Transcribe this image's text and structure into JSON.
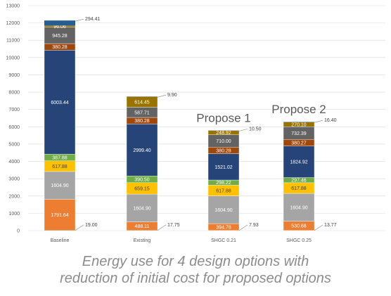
{
  "chart_data": {
    "type": "stacked-bar",
    "ylim": [
      0,
      13000
    ],
    "yticks": [
      "0",
      "1000",
      "2000",
      "3000",
      "4000",
      "5000",
      "6000",
      "7000",
      "8000",
      "9000",
      "10000",
      "11000",
      "12000",
      "13000"
    ],
    "grid": true,
    "categories": [
      "Baseline",
      "Existing",
      "SHGC 0.21",
      "SHGC 0.25"
    ],
    "series": [
      {
        "color": "#ed7d31",
        "values": [
          1791.64,
          488.11,
          394.78,
          530.68
        ],
        "labels": [
          "1791.64",
          "488.11",
          "394.78",
          "530.68"
        ]
      },
      {
        "color": "#a5a5a5",
        "values": [
          1604.9,
          1604.9,
          1604.9,
          1604.9
        ],
        "labels": [
          "1604.90",
          "1604.90",
          "1604.90",
          "1604.90"
        ]
      },
      {
        "color": "#ffc000",
        "values": [
          617.88,
          659.15,
          617.88,
          617.88
        ],
        "labels": [
          "617.88",
          "659.15",
          "617.88",
          "617.88"
        ]
      },
      {
        "color": "#70ad47",
        "values": [
          387.88,
          390.5,
          298.22,
          297.46
        ],
        "labels": [
          "387.88",
          "390.50",
          "298.22",
          "297.46"
        ]
      },
      {
        "color": "#264478",
        "values": [
          6003.44,
          2999.4,
          1521.02,
          1824.92
        ],
        "labels": [
          "6003.44",
          "2999.40",
          "1521.02",
          "1824.92"
        ]
      },
      {
        "color": "#9e480e",
        "values": [
          380.28,
          380.28,
          380.28,
          380.27
        ],
        "labels": [
          "380.28",
          "380.28",
          "380.28",
          "380.27"
        ]
      },
      {
        "color": "#636363",
        "values": [
          945.28,
          587.71,
          710.0,
          732.39
        ],
        "labels": [
          "945.28",
          "587.71",
          "710.00",
          "732.39"
        ]
      },
      {
        "color": "#997300",
        "values": [
          96.06,
          614.45,
          248.92,
          270.1
        ],
        "labels": [
          "96.06",
          "614.45",
          "248.92",
          "270.10"
        ]
      },
      {
        "color": "#255e91",
        "values": [
          294.41,
          9.9,
          10.5,
          16.4
        ],
        "labels": [
          "294.41",
          "9.90",
          "10.50",
          "16.40"
        ],
        "outside": true
      },
      {
        "color": "#43682b",
        "values": [
          19.0,
          17.75,
          7.93,
          13.77
        ],
        "labels": [
          "19.00",
          "17.75",
          "7.93",
          "13.77"
        ],
        "outside": true
      }
    ],
    "annotations": [
      {
        "text": "Propose 1",
        "category": "SHGC 0.21"
      },
      {
        "text": "Propose 2",
        "category": "SHGC 0.25"
      }
    ]
  },
  "caption": {
    "line1": "Energy use for 4 design options with",
    "line2": "reduction of initial cost for proposed options"
  }
}
